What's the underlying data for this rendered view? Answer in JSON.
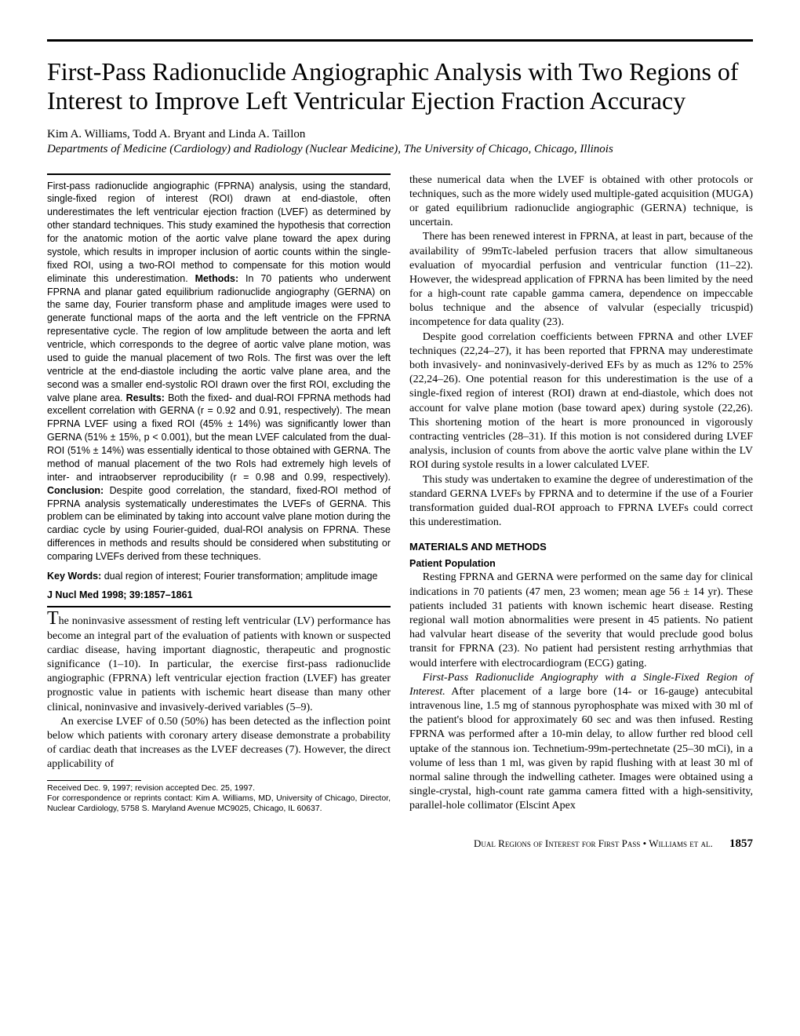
{
  "title": "First-Pass Radionuclide Angiographic Analysis with Two Regions of Interest to Improve Left Ventricular Ejection Fraction Accuracy",
  "authors": "Kim A. Williams, Todd A. Bryant and Linda A. Taillon",
  "affiliation": "Departments of Medicine (Cardiology) and Radiology (Nuclear Medicine), The University of Chicago, Chicago, Illinois",
  "abstract": {
    "text1": "First-pass radionuclide angiographic (FPRNA) analysis, using the standard, single-fixed region of interest (ROI) drawn at end-diastole, often underestimates the left ventricular ejection fraction (LVEF) as determined by other standard techniques. This study examined the hypothesis that correction for the anatomic motion of the aortic valve plane toward the apex during systole, which results in improper inclusion of aortic counts within the single-fixed ROI, using a two-ROI method to compensate for this motion would eliminate this underestimation. ",
    "methods_label": "Methods:",
    "methods": " In 70 patients who underwent FPRNA and planar gated equilibrium radionuclide angiography (GERNA) on the same day, Fourier transform phase and amplitude images were used to generate functional maps of the aorta and the left ventricle on the FPRNA representative cycle. The region of low amplitude between the aorta and left ventricle, which corresponds to the degree of aortic valve plane motion, was used to guide the manual placement of two RoIs. The first was over the left ventricle at the end-diastole including the aortic valve plane area, and the second was a smaller end-systolic ROI drawn over the first ROI, excluding the valve plane area. ",
    "results_label": "Results:",
    "results": " Both the fixed- and dual-ROI FPRNA methods had excellent correlation with GERNA (r = 0.92 and 0.91, respectively). The mean FPRNA LVEF using a fixed ROI (45% ± 14%) was significantly lower than GERNA (51% ± 15%, p < 0.001), but the mean LVEF calculated from the dual-ROI (51% ± 14%) was essentially identical to those obtained with GERNA. The method of manual placement of the two RoIs had extremely high levels of inter- and intraobserver reproducibility (r = 0.98 and 0.99, respectively). ",
    "conclusion_label": "Conclusion:",
    "conclusion": " Despite good correlation, the standard, fixed-ROI method of FPRNA analysis systematically underestimates the LVEFs of GERNA. This problem can be eliminated by taking into account valve plane motion during the cardiac cycle by using Fourier-guided, dual-ROI analysis on FPRNA. These differences in methods and results should be considered when substituting or comparing LVEFs derived from these techniques."
  },
  "keywords_label": "Key Words:",
  "keywords": " dual region of interest; Fourier transformation; amplitude image",
  "citation": "J Nucl Med 1998; 39:1857–1861",
  "intro": {
    "p1_first": "T",
    "p1": "he noninvasive assessment of resting left ventricular (LV) performance has become an integral part of the evaluation of patients with known or suspected cardiac disease, having important diagnostic, therapeutic and prognostic significance (1–10). In particular, the exercise first-pass radionuclide angiographic (FPRNA) left ventricular ejection fraction (LVEF) has greater prognostic value in patients with ischemic heart disease than many other clinical, noninvasive and invasively-derived variables (5–9).",
    "p2": "An exercise LVEF of 0.50 (50%) has been detected as the inflection point below which patients with coronary artery disease demonstrate a probability of cardiac death that increases as the LVEF decreases (7). However, the direct applicability of",
    "p3": "these numerical data when the LVEF is obtained with other protocols or techniques, such as the more widely used multiple-gated acquisition (MUGA) or gated equilibrium radionuclide angiographic (GERNA) technique, is uncertain.",
    "p4": "There has been renewed interest in FPRNA, at least in part, because of the availability of 99mTc-labeled perfusion tracers that allow simultaneous evaluation of myocardial perfusion and ventricular function (11–22). However, the widespread application of FPRNA has been limited by the need for a high-count rate capable gamma camera, dependence on impeccable bolus technique and the absence of valvular (especially tricuspid) incompetence for data quality (23).",
    "p5": "Despite good correlation coefficients between FPRNA and other LVEF techniques (22,24–27), it has been reported that FPRNA may underestimate both invasively- and noninvasively-derived EFs by as much as 12% to 25% (22,24–26). One potential reason for this underestimation is the use of a single-fixed region of interest (ROI) drawn at end-diastole, which does not account for valve plane motion (base toward apex) during systole (22,26). This shortening motion of the heart is more pronounced in vigorously contracting ventricles (28–31). If this motion is not considered during LVEF analysis, inclusion of counts from above the aortic valve plane within the LV ROI during systole results in a lower calculated LVEF.",
    "p6": "This study was undertaken to examine the degree of underestimation of the standard GERNA LVEFs by FPRNA and to determine if the use of a Fourier transformation guided dual-ROI approach to FPRNA LVEFs could correct this underestimation."
  },
  "materials_heading": "MATERIALS AND METHODS",
  "patient_pop_heading": "Patient Population",
  "patient_pop": {
    "p1": "Resting FPRNA and GERNA were performed on the same day for clinical indications in 70 patients (47 men, 23 women; mean age 56 ± 14 yr). These patients included 31 patients with known ischemic heart disease. Resting regional wall motion abnormalities were present in 45 patients. No patient had valvular heart disease of the severity that would preclude good bolus transit for FPRNA (23). No patient had persistent resting arrhythmias that would interfere with electrocardiogram (ECG) gating.",
    "p2_runin": "First-Pass Radionuclide Angiography with a Single-Fixed Region of Interest.",
    "p2": " After placement of a large bore (14- or 16-gauge) antecubital intravenous line, 1.5 mg of stannous pyrophosphate was mixed with 30 ml of the patient's blood for approximately 60 sec and was then infused. Resting FPRNA was performed after a 10-min delay, to allow further red blood cell uptake of the stannous ion. Technetium-99m-pertechnetate (25–30 mCi), in a volume of less than 1 ml, was given by rapid flushing with at least 30 ml of normal saline through the indwelling catheter. Images were obtained using a single-crystal, high-count rate gamma camera fitted with a high-sensitivity, parallel-hole collimator (Elscint Apex"
  },
  "footnote": {
    "l1": "Received Dec. 9, 1997; revision accepted Dec. 25, 1997.",
    "l2": "For correspondence or reprints contact: Kim A. Williams, MD, University of Chicago, Director, Nuclear Cardiology, 5758 S. Maryland Avenue MC9025, Chicago, IL 60637."
  },
  "footer": {
    "running": "Dual Regions of Interest for First Pass • Williams et al.",
    "page": "1857"
  }
}
